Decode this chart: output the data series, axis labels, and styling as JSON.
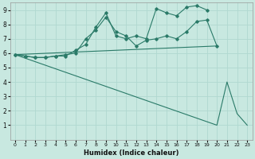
{
  "xlabel": "Humidex (Indice chaleur)",
  "bg_color": "#c8e8e0",
  "grid_color": "#b0d8d0",
  "line_color": "#2a7a68",
  "xlim_min": -0.5,
  "xlim_max": 23.5,
  "ylim_min": 0,
  "ylim_max": 9.5,
  "xticks": [
    0,
    1,
    2,
    3,
    4,
    5,
    6,
    7,
    8,
    9,
    10,
    11,
    12,
    13,
    14,
    15,
    16,
    17,
    18,
    19,
    20,
    21,
    22,
    23
  ],
  "yticks": [
    1,
    2,
    3,
    4,
    5,
    6,
    7,
    8,
    9
  ],
  "series": [
    {
      "x": [
        0,
        1,
        2,
        3,
        4,
        5,
        6,
        7,
        8,
        9,
        10,
        11,
        12,
        13,
        14,
        15,
        16,
        17,
        18,
        19
      ],
      "y": [
        5.9,
        5.8,
        5.7,
        5.7,
        5.8,
        5.8,
        6.2,
        6.6,
        7.8,
        8.8,
        7.2,
        7.0,
        7.2,
        7.0,
        9.1,
        8.8,
        8.6,
        9.2,
        9.3,
        9.0
      ],
      "has_markers": true
    },
    {
      "x": [
        0,
        1,
        2,
        3,
        4,
        5,
        6,
        7,
        8,
        9,
        10,
        11,
        12,
        13,
        14,
        15,
        16,
        17,
        18,
        19,
        20
      ],
      "y": [
        5.9,
        5.8,
        5.7,
        5.7,
        5.8,
        5.9,
        6.0,
        7.0,
        7.6,
        8.5,
        7.5,
        7.2,
        6.5,
        6.9,
        7.0,
        7.2,
        7.0,
        7.5,
        8.2,
        8.3,
        6.5
      ],
      "has_markers": true
    },
    {
      "x": [
        0,
        20
      ],
      "y": [
        5.9,
        6.5
      ],
      "has_markers": false
    },
    {
      "x": [
        0,
        20,
        21,
        22,
        23
      ],
      "y": [
        5.9,
        1.0,
        4.0,
        1.8,
        1.0
      ],
      "has_markers": false
    }
  ]
}
